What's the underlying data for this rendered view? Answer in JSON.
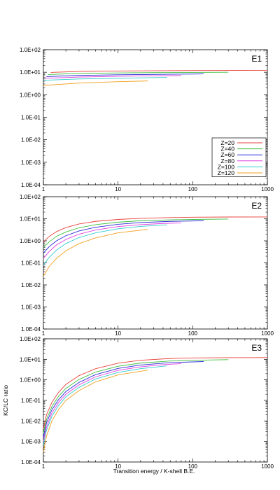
{
  "figure": {
    "ylabel": "KC/LC  ratio",
    "xlabel": "Transition energy / K-shell B.E."
  },
  "legend": {
    "entries": [
      {
        "label": "Z=20",
        "color": "#e8423b"
      },
      {
        "label": "Z=40",
        "color": "#3fbf3f"
      },
      {
        "label": "Z=60",
        "color": "#2a2ad8"
      },
      {
        "label": "Z=80",
        "color": "#e040e0"
      },
      {
        "label": "Z=100",
        "color": "#33cccc"
      },
      {
        "label": "Z=120",
        "color": "#f0a020"
      }
    ],
    "placement": "bottom-right of panel E1"
  },
  "chart_data": [
    {
      "type": "line",
      "panel": "E1",
      "xscale": "log",
      "yscale": "log",
      "xlim": [
        1,
        1000
      ],
      "ylim": [
        0.0001,
        100
      ],
      "xticks": [
        "1",
        "10",
        "100",
        "1000"
      ],
      "yticks": [
        "1.0E-04",
        "1.0E-03",
        "1.0E-02",
        "1.0E-01",
        "1.0E+00",
        "1.0E+01",
        "1.0E+02"
      ],
      "grid": false,
      "series": [
        {
          "name": "Z=20",
          "x": [
            1.25,
            3,
            10,
            30,
            100,
            400,
            1000
          ],
          "y": [
            9.8,
            10.8,
            11.3,
            11.6,
            11.9,
            12.1,
            12.2
          ]
        },
        {
          "name": "Z=40",
          "x": [
            1.15,
            3,
            10,
            30,
            100,
            300
          ],
          "y": [
            7.9,
            8.8,
            9.3,
            9.6,
            9.8,
            10.0
          ]
        },
        {
          "name": "Z=60",
          "x": [
            1.1,
            3,
            10,
            30,
            100,
            140
          ],
          "y": [
            6.4,
            7.2,
            7.7,
            8.0,
            8.3,
            8.4
          ]
        },
        {
          "name": "Z=80",
          "x": [
            1.05,
            3,
            10,
            30,
            70
          ],
          "y": [
            5.4,
            6.1,
            6.6,
            6.9,
            7.1
          ]
        },
        {
          "name": "Z=100",
          "x": [
            1.0,
            3,
            10,
            25,
            45
          ],
          "y": [
            4.4,
            5.0,
            5.4,
            5.7,
            5.9
          ]
        },
        {
          "name": "Z=120",
          "x": [
            1.0,
            3,
            10,
            25
          ],
          "y": [
            2.6,
            3.3,
            3.8,
            4.1
          ]
        }
      ]
    },
    {
      "type": "line",
      "panel": "E2",
      "xscale": "log",
      "yscale": "log",
      "xlim": [
        1,
        1000
      ],
      "ylim": [
        0.0001,
        100
      ],
      "xticks": [
        "1",
        "10",
        "100",
        "1000"
      ],
      "yticks": [
        "1.0E-04",
        "1.0E-03",
        "1.0E-02",
        "1.0E-01",
        "1.0E+00",
        "1.0E+01",
        "1.0E+02"
      ],
      "grid": false,
      "series": [
        {
          "name": "Z=20",
          "x": [
            1.0,
            1.2,
            1.5,
            2,
            3,
            5,
            10,
            20,
            50,
            100,
            300,
            1000
          ],
          "y": [
            0.9,
            1.6,
            2.6,
            4.0,
            5.8,
            7.6,
            9.3,
            10.4,
            11.3,
            11.7,
            12.0,
            12.1
          ]
        },
        {
          "name": "Z=40",
          "x": [
            1.0,
            1.2,
            1.5,
            2,
            3,
            5,
            10,
            20,
            50,
            100,
            300
          ],
          "y": [
            0.5,
            0.9,
            1.6,
            2.5,
            3.9,
            5.4,
            7.0,
            8.1,
            8.9,
            9.3,
            9.7
          ]
        },
        {
          "name": "Z=60",
          "x": [
            1.0,
            1.2,
            1.5,
            2,
            3,
            5,
            10,
            20,
            50,
            140
          ],
          "y": [
            0.28,
            0.55,
            1.0,
            1.7,
            2.8,
            4.1,
            5.6,
            6.7,
            7.6,
            8.1
          ]
        },
        {
          "name": "Z=80",
          "x": [
            1.0,
            1.2,
            1.5,
            2,
            3,
            5,
            10,
            20,
            40,
            70
          ],
          "y": [
            0.16,
            0.33,
            0.65,
            1.15,
            2.0,
            3.1,
            4.4,
            5.4,
            6.1,
            6.5
          ]
        },
        {
          "name": "Z=100",
          "x": [
            1.0,
            1.2,
            1.5,
            2,
            3,
            5,
            10,
            20,
            45
          ],
          "y": [
            0.08,
            0.18,
            0.38,
            0.75,
            1.4,
            2.3,
            3.5,
            4.5,
            5.3
          ]
        },
        {
          "name": "Z=120",
          "x": [
            1.0,
            1.2,
            1.5,
            2,
            3,
            5,
            10,
            25
          ],
          "y": [
            0.025,
            0.07,
            0.16,
            0.35,
            0.75,
            1.35,
            2.3,
            3.3
          ]
        }
      ]
    },
    {
      "type": "line",
      "panel": "E3",
      "xscale": "log",
      "yscale": "log",
      "xlim": [
        1,
        1000
      ],
      "ylim": [
        0.0001,
        100
      ],
      "xticks": [
        "1",
        "10",
        "100",
        "1000"
      ],
      "yticks": [
        "1.0E-04",
        "1.0E-03",
        "1.0E-02",
        "1.0E-01",
        "1.0E+00",
        "1.0E+01",
        "1.0E+02"
      ],
      "grid": false,
      "series": [
        {
          "name": "Z=20",
          "x": [
            1.0,
            1.1,
            1.3,
            1.6,
            2,
            3,
            5,
            10,
            20,
            50,
            100,
            300,
            1000
          ],
          "y": [
            0.004,
            0.02,
            0.08,
            0.25,
            0.6,
            1.6,
            3.5,
            6.5,
            9.0,
            11.0,
            11.7,
            12.1,
            12.2
          ]
        },
        {
          "name": "Z=40",
          "x": [
            1.0,
            1.1,
            1.3,
            1.6,
            2,
            3,
            5,
            10,
            20,
            50,
            100,
            300
          ],
          "y": [
            0.0025,
            0.012,
            0.05,
            0.16,
            0.38,
            1.05,
            2.4,
            4.6,
            6.6,
            8.3,
            9.0,
            9.6
          ]
        },
        {
          "name": "Z=60",
          "x": [
            1.0,
            1.1,
            1.3,
            1.6,
            2,
            3,
            5,
            10,
            20,
            50,
            140
          ],
          "y": [
            0.0015,
            0.008,
            0.035,
            0.11,
            0.27,
            0.75,
            1.8,
            3.6,
            5.3,
            6.9,
            7.8
          ]
        },
        {
          "name": "Z=80",
          "x": [
            1.0,
            1.1,
            1.3,
            1.6,
            2,
            3,
            5,
            10,
            20,
            40,
            70
          ],
          "y": [
            0.001,
            0.005,
            0.024,
            0.08,
            0.2,
            0.57,
            1.4,
            2.9,
            4.3,
            5.5,
            6.2
          ]
        },
        {
          "name": "Z=100",
          "x": [
            1.0,
            1.1,
            1.3,
            1.6,
            2,
            3,
            5,
            10,
            20,
            45
          ],
          "y": [
            0.0007,
            0.0035,
            0.017,
            0.057,
            0.15,
            0.43,
            1.1,
            2.3,
            3.5,
            4.8
          ]
        },
        {
          "name": "Z=120",
          "x": [
            1.0,
            1.1,
            1.3,
            1.6,
            2,
            3,
            5,
            10,
            25
          ],
          "y": [
            0.0003,
            0.0018,
            0.01,
            0.036,
            0.1,
            0.3,
            0.8,
            1.75,
            3.0
          ]
        }
      ]
    }
  ]
}
